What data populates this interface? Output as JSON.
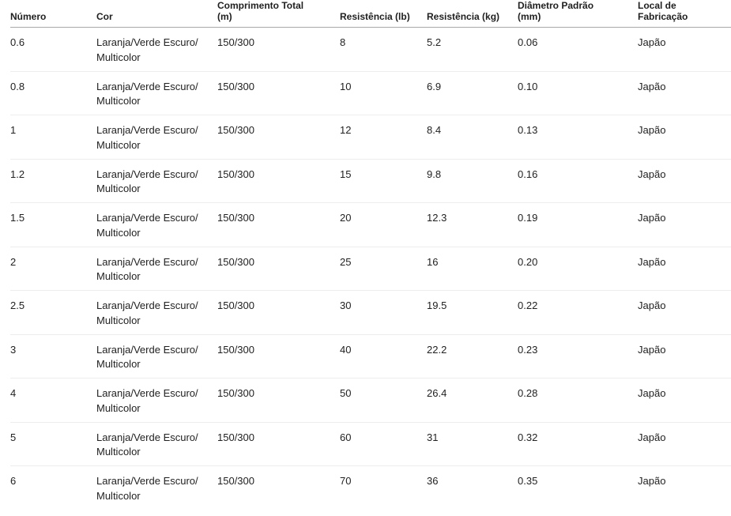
{
  "table": {
    "columns": [
      {
        "key": "numero",
        "label": "Número"
      },
      {
        "key": "cor",
        "label": "Cor"
      },
      {
        "key": "comprimento_total_m",
        "label": [
          "Comprimento Total",
          "(m)"
        ]
      },
      {
        "key": "resistencia_lb",
        "label": "Resistência (lb)"
      },
      {
        "key": "resistencia_kg",
        "label": "Resistência (kg)"
      },
      {
        "key": "diametro_padrao_mm",
        "label": [
          "Diâmetro Padrão",
          "(mm)"
        ]
      },
      {
        "key": "local_de_fabricacao",
        "label": "Local de Fabricação"
      }
    ],
    "rows": [
      [
        "0.6",
        [
          "Laranja/Verde Escuro/",
          "Multicolor"
        ],
        "150/300",
        "8",
        "5.2",
        "0.06",
        "Japão"
      ],
      [
        "0.8",
        [
          "Laranja/Verde Escuro/",
          "Multicolor"
        ],
        "150/300",
        "10",
        "6.9",
        "0.10",
        "Japão"
      ],
      [
        "1",
        [
          "Laranja/Verde Escuro/",
          "Multicolor"
        ],
        "150/300",
        "12",
        "8.4",
        "0.13",
        "Japão"
      ],
      [
        "1.2",
        [
          "Laranja/Verde Escuro/",
          "Multicolor"
        ],
        "150/300",
        "15",
        "9.8",
        "0.16",
        "Japão"
      ],
      [
        "1.5",
        [
          "Laranja/Verde Escuro/",
          "Multicolor"
        ],
        "150/300",
        "20",
        "12.3",
        "0.19",
        "Japão"
      ],
      [
        "2",
        [
          "Laranja/Verde Escuro/",
          "Multicolor"
        ],
        "150/300",
        "25",
        "16",
        "0.20",
        "Japão"
      ],
      [
        "2.5",
        [
          "Laranja/Verde Escuro/",
          "Multicolor"
        ],
        "150/300",
        "30",
        "19.5",
        "0.22",
        "Japão"
      ],
      [
        "3",
        [
          "Laranja/Verde Escuro/",
          "Multicolor"
        ],
        "150/300",
        "40",
        "22.2",
        "0.23",
        "Japão"
      ],
      [
        "4",
        [
          "Laranja/Verde Escuro/",
          "Multicolor"
        ],
        "150/300",
        "50",
        "26.4",
        "0.28",
        "Japão"
      ],
      [
        "5",
        [
          "Laranja/Verde Escuro/",
          "Multicolor"
        ],
        "150/300",
        "60",
        "31",
        "0.32",
        "Japão"
      ],
      [
        "6",
        [
          "Laranja/Verde Escuro/",
          "Multicolor"
        ],
        "150/300",
        "70",
        "36",
        "0.35",
        "Japão"
      ]
    ],
    "colors": {
      "header_border": "#a9a9a9",
      "row_border": "#ededed",
      "text": "#222222",
      "background": "#ffffff"
    }
  }
}
